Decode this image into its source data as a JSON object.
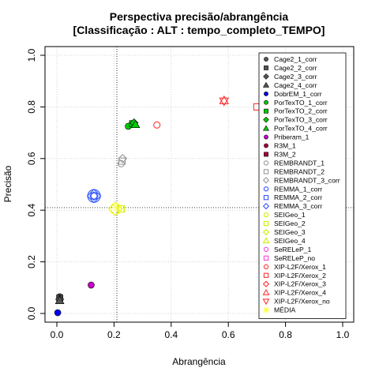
{
  "chart_data": {
    "type": "scatter",
    "title": "Perspectiva precisão/abrangência",
    "subtitle": "[Classificação : ALT : tempo_completo_TEMPO]",
    "xlabel": "Abrangência",
    "ylabel": "Precisão",
    "xlim": [
      0,
      1
    ],
    "ylim": [
      0,
      1
    ],
    "xticks": [
      "0.0",
      "0.2",
      "0.4",
      "0.6",
      "0.8",
      "1.0"
    ],
    "yticks": [
      "0.0",
      "0.2",
      "0.4",
      "0.6",
      "0.8",
      "1.0"
    ],
    "grid": true,
    "legend_position": "right",
    "reference_lines": {
      "x": 0.21,
      "y": 0.41
    },
    "series": [
      {
        "name": "Cage2_1_corr",
        "color": "#555555",
        "shape": "circle",
        "filled": true,
        "x": 0.01,
        "y": 0.065
      },
      {
        "name": "Cage2_2_corr",
        "color": "#555555",
        "shape": "square",
        "filled": true,
        "x": 0.01,
        "y": 0.06
      },
      {
        "name": "Cage2_3_corr",
        "color": "#555555",
        "shape": "diamond",
        "filled": true,
        "x": 0.01,
        "y": 0.055
      },
      {
        "name": "Cage2_4_corr",
        "color": "#555555",
        "shape": "triangle",
        "filled": true,
        "x": 0.01,
        "y": 0.05
      },
      {
        "name": "DobrEM_1_corr",
        "color": "#0000ee",
        "shape": "circle",
        "filled": true,
        "x": 0.003,
        "y": 0.003
      },
      {
        "name": "PorTexTO_1_corr",
        "color": "#00cc00",
        "shape": "circle",
        "filled": true,
        "x": 0.25,
        "y": 0.725
      },
      {
        "name": "PorTexTO_2_corr",
        "color": "#00cc00",
        "shape": "square",
        "filled": true,
        "x": 0.265,
        "y": 0.735
      },
      {
        "name": "PorTexTO_3_corr",
        "color": "#00cc00",
        "shape": "diamond",
        "filled": true,
        "x": 0.27,
        "y": 0.738
      },
      {
        "name": "PorTexTO_4_corr",
        "color": "#00cc00",
        "shape": "triangle",
        "filled": true,
        "x": 0.275,
        "y": 0.732
      },
      {
        "name": "Priberam_1",
        "color": "#cc00cc",
        "shape": "circle",
        "filled": true,
        "x": 0.12,
        "y": 0.11
      },
      {
        "name": "R3M_1",
        "color": "#aa0033",
        "shape": "circle",
        "filled": true,
        "x": null,
        "y": null
      },
      {
        "name": "R3M_2",
        "color": "#aa0033",
        "shape": "square",
        "filled": true,
        "x": null,
        "y": null
      },
      {
        "name": "REMBRANDT_1",
        "color": "#999999",
        "shape": "circle",
        "filled": false,
        "x": 0.225,
        "y": 0.58
      },
      {
        "name": "REMBRANDT_2",
        "color": "#999999",
        "shape": "square",
        "filled": false,
        "x": 0.228,
        "y": 0.59
      },
      {
        "name": "REMBRANDT_3_corr",
        "color": "#999999",
        "shape": "diamond",
        "filled": false,
        "x": 0.23,
        "y": 0.6
      },
      {
        "name": "REMMA_1_corr",
        "color": "#3355ff",
        "shape": "circle",
        "filled": false,
        "x": 0.13,
        "y": 0.455
      },
      {
        "name": "REMMA_2_corr",
        "color": "#3355ff",
        "shape": "square",
        "filled": false,
        "x": 0.13,
        "y": 0.455
      },
      {
        "name": "REMMA_3_corr",
        "color": "#3355ff",
        "shape": "diamond",
        "filled": false,
        "x": 0.13,
        "y": 0.455
      },
      {
        "name": "SEIGeo_1",
        "color": "#ccee00",
        "shape": "circle",
        "filled": false,
        "x": null,
        "y": null
      },
      {
        "name": "SEIGeo_2",
        "color": "#ccee00",
        "shape": "square",
        "filled": false,
        "x": null,
        "y": null
      },
      {
        "name": "SEIGeo_3",
        "color": "#ccee00",
        "shape": "diamond",
        "filled": false,
        "x": null,
        "y": null
      },
      {
        "name": "SEIGeo_4",
        "color": "#ccee00",
        "shape": "triangle",
        "filled": false,
        "x": null,
        "y": null
      },
      {
        "name": "SeRELeP_1",
        "color": "#ff44dd",
        "shape": "circle",
        "filled": false,
        "x": null,
        "y": null
      },
      {
        "name": "SeRELeP_no",
        "color": "#ff44dd",
        "shape": "square",
        "filled": false,
        "x": null,
        "y": null
      },
      {
        "name": "XIP-L2F/Xerox_1",
        "color": "#ff3333",
        "shape": "circle",
        "filled": false,
        "x": 0.35,
        "y": 0.73
      },
      {
        "name": "XIP-L2F/Xerox_2",
        "color": "#ff3333",
        "shape": "square",
        "filled": false,
        "x": 0.7,
        "y": 0.8
      },
      {
        "name": "XIP-L2F/Xerox_3",
        "color": "#ff3333",
        "shape": "diamond",
        "filled": false,
        "x": null,
        "y": null
      },
      {
        "name": "XIP-L2F/Xerox_4",
        "color": "#ff3333",
        "shape": "triangle",
        "filled": false,
        "x": 0.585,
        "y": 0.825
      },
      {
        "name": "XIP-L2F/Xerox_no",
        "color": "#ff3333",
        "shape": "triangle-down",
        "filled": false,
        "x": 0.585,
        "y": 0.822
      },
      {
        "name": "MÉDIA",
        "color": "#ffff44",
        "shape": "star",
        "filled": false,
        "x": 0.21,
        "y": 0.41
      }
    ],
    "extra_markers": [
      {
        "series": "SEIGeo_2",
        "color": "#ccee00",
        "shape": "square",
        "x": 0.225,
        "y": 0.405
      },
      {
        "series": "SEIGeo_3",
        "color": "#ccee00",
        "shape": "diamond-large",
        "x": 0.205,
        "y": 0.405
      },
      {
        "series": "REMMA_3_corr",
        "color": "#3355ff",
        "shape": "diamond-large",
        "x": 0.13,
        "y": 0.455
      }
    ]
  }
}
